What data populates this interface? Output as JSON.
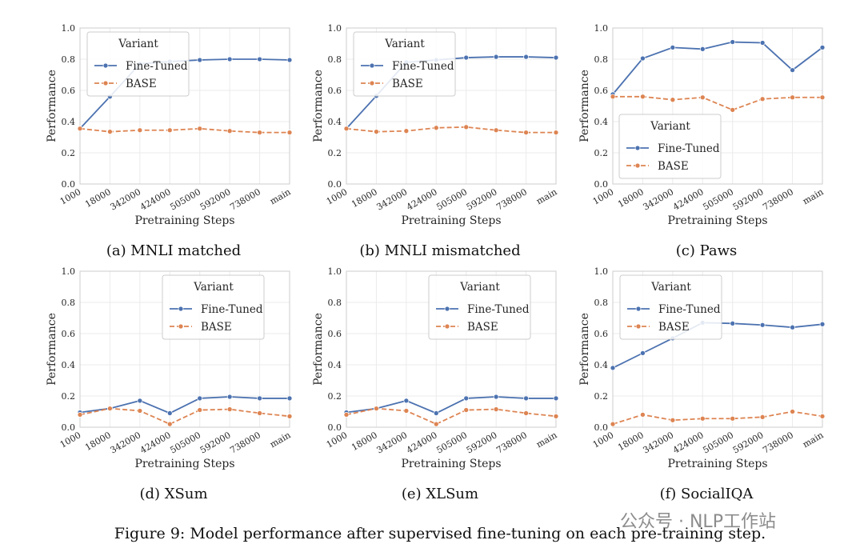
{
  "figure": {
    "caption": "Figure 9: Model performance after supervised fine-tuning on each pre-training step.",
    "watermark": "公众号 · NLP工作站"
  },
  "colors": {
    "fine_tuned": "#4c72b0",
    "base": "#dd8452",
    "grid": "#ebebeb",
    "frame": "#cccccc"
  },
  "chart_data": [
    {
      "type": "line",
      "subcaption": "(a) MNLI matched",
      "categories": [
        "1000",
        "18000",
        "342000",
        "424000",
        "505000",
        "592000",
        "738000",
        "main"
      ],
      "xlabel": "Pretraining Steps",
      "ylabel": "Performance",
      "ylim": [
        0,
        1
      ],
      "yticks": [
        "0.0",
        "0.2",
        "0.4",
        "0.6",
        "0.8",
        "1.0"
      ],
      "legend": {
        "title": "Variant",
        "loc": "upper-left"
      },
      "series": [
        {
          "name": "Fine-Tuned",
          "style": "solid",
          "values": [
            0.355,
            0.56,
            0.77,
            0.785,
            0.795,
            0.8,
            0.8,
            0.795
          ]
        },
        {
          "name": "BASE",
          "style": "dashed",
          "values": [
            0.355,
            0.335,
            0.345,
            0.345,
            0.355,
            0.34,
            0.33,
            0.33
          ]
        }
      ]
    },
    {
      "type": "line",
      "subcaption": "(b) MNLI mismatched",
      "categories": [
        "1000",
        "18000",
        "342000",
        "424000",
        "505000",
        "592000",
        "738000",
        "main"
      ],
      "xlabel": "Pretraining Steps",
      "ylabel": "Performance",
      "ylim": [
        0,
        1
      ],
      "yticks": [
        "0.0",
        "0.2",
        "0.4",
        "0.6",
        "0.8",
        "1.0"
      ],
      "legend": {
        "title": "Variant",
        "loc": "upper-left"
      },
      "series": [
        {
          "name": "Fine-Tuned",
          "style": "solid",
          "values": [
            0.355,
            0.565,
            0.78,
            0.795,
            0.81,
            0.815,
            0.815,
            0.81
          ]
        },
        {
          "name": "BASE",
          "style": "dashed",
          "values": [
            0.355,
            0.335,
            0.34,
            0.36,
            0.365,
            0.345,
            0.33,
            0.33
          ]
        }
      ]
    },
    {
      "type": "line",
      "subcaption": "(c) Paws",
      "categories": [
        "1000",
        "18000",
        "342000",
        "424000",
        "505000",
        "592000",
        "738000",
        "main"
      ],
      "xlabel": "Pretraining Steps",
      "ylabel": "Performance",
      "ylim": [
        0,
        1
      ],
      "yticks": [
        "0.0",
        "0.2",
        "0.4",
        "0.6",
        "0.8",
        "1.0"
      ],
      "legend": {
        "title": "Variant",
        "loc": "lower-left"
      },
      "series": [
        {
          "name": "Fine-Tuned",
          "style": "solid",
          "values": [
            0.575,
            0.805,
            0.875,
            0.865,
            0.91,
            0.905,
            0.73,
            0.875
          ]
        },
        {
          "name": "BASE",
          "style": "dashed",
          "values": [
            0.56,
            0.56,
            0.54,
            0.555,
            0.475,
            0.545,
            0.555,
            0.555
          ]
        }
      ]
    },
    {
      "type": "line",
      "subcaption": "(d) XSum",
      "categories": [
        "1000",
        "18000",
        "342000",
        "424000",
        "505000",
        "592000",
        "738000",
        "main"
      ],
      "xlabel": "Pretraining Steps",
      "ylabel": "Performance",
      "ylim": [
        0,
        1
      ],
      "yticks": [
        "0.0",
        "0.2",
        "0.4",
        "0.6",
        "0.8",
        "1.0"
      ],
      "legend": {
        "title": "Variant",
        "loc": "upper-right"
      },
      "series": [
        {
          "name": "Fine-Tuned",
          "style": "solid",
          "values": [
            0.095,
            0.12,
            0.17,
            0.09,
            0.185,
            0.195,
            0.185,
            0.185
          ]
        },
        {
          "name": "BASE",
          "style": "dashed",
          "values": [
            0.08,
            0.12,
            0.105,
            0.02,
            0.11,
            0.115,
            0.09,
            0.07
          ]
        }
      ]
    },
    {
      "type": "line",
      "subcaption": "(e) XLSum",
      "categories": [
        "1000",
        "18000",
        "342000",
        "424000",
        "505000",
        "592000",
        "738000",
        "main"
      ],
      "xlabel": "Pretraining Steps",
      "ylabel": "Performance",
      "ylim": [
        0,
        1
      ],
      "yticks": [
        "0.0",
        "0.2",
        "0.4",
        "0.6",
        "0.8",
        "1.0"
      ],
      "legend": {
        "title": "Variant",
        "loc": "upper-right"
      },
      "series": [
        {
          "name": "Fine-Tuned",
          "style": "solid",
          "values": [
            0.095,
            0.12,
            0.17,
            0.09,
            0.185,
            0.195,
            0.185,
            0.185
          ]
        },
        {
          "name": "BASE",
          "style": "dashed",
          "values": [
            0.08,
            0.12,
            0.105,
            0.02,
            0.11,
            0.115,
            0.09,
            0.07
          ]
        }
      ]
    },
    {
      "type": "line",
      "subcaption": "(f) SocialIQA",
      "categories": [
        "1000",
        "18000",
        "342000",
        "424000",
        "505000",
        "592000",
        "738000",
        "main"
      ],
      "xlabel": "Pretraining Steps",
      "ylabel": "Performance",
      "ylim": [
        0,
        1
      ],
      "yticks": [
        "0.0",
        "0.2",
        "0.4",
        "0.6",
        "0.8",
        "1.0"
      ],
      "legend": {
        "title": "Variant",
        "loc": "upper-left"
      },
      "series": [
        {
          "name": "Fine-Tuned",
          "style": "solid",
          "values": [
            0.38,
            0.475,
            0.57,
            0.67,
            0.665,
            0.655,
            0.64,
            0.66
          ]
        },
        {
          "name": "BASE",
          "style": "dashed",
          "values": [
            0.02,
            0.08,
            0.045,
            0.055,
            0.055,
            0.065,
            0.1,
            0.07
          ]
        }
      ]
    }
  ]
}
